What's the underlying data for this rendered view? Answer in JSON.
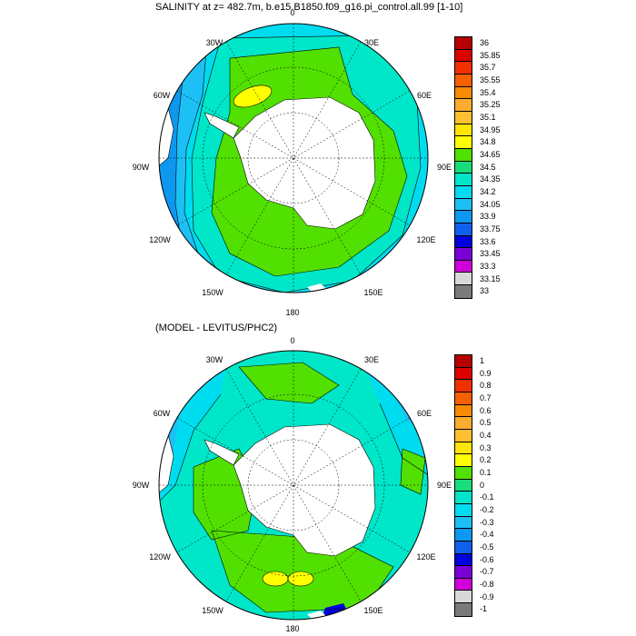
{
  "panels": [
    {
      "title": "SALINITY at z= 482.7m, b.e15.B1850.f09_g16.pi_control.all.99 [1-10]",
      "lon_labels": [
        "0",
        "30E",
        "60E",
        "90E",
        "120E",
        "150E",
        "180",
        "150W",
        "120W",
        "90W",
        "60W",
        "30W"
      ],
      "colorbar": {
        "labels": [
          "36",
          "35.85",
          "35.7",
          "35.55",
          "35.4",
          "35.25",
          "35.1",
          "34.95",
          "34.8",
          "34.65",
          "34.5",
          "34.35",
          "34.2",
          "34.05",
          "33.9",
          "33.75",
          "33.6",
          "33.45",
          "33.3",
          "33.15",
          "33"
        ],
        "colors": [
          "#b40000",
          "#dc0000",
          "#f03000",
          "#f56000",
          "#f88a00",
          "#fbac30",
          "#fdc030",
          "#ffe600",
          "#ffff00",
          "#52e000",
          "#19dd7a",
          "#00e6c8",
          "#00dcef",
          "#1cc0f5",
          "#0d98f0",
          "#1060ee",
          "#0000e0",
          "#7a00d8",
          "#d000d8",
          "#d8d8d8",
          "#7a7a7a"
        ]
      }
    },
    {
      "title": "(MODEL - LEVITUS/PHC2)",
      "lon_labels": [
        "0",
        "30E",
        "60E",
        "90E",
        "120E",
        "150E",
        "180",
        "150W",
        "120W",
        "90W",
        "60W",
        "30W"
      ],
      "colorbar": {
        "labels": [
          "1",
          "0.9",
          "0.8",
          "0.7",
          "0.6",
          "0.5",
          "0.4",
          "0.3",
          "0.2",
          "0.1",
          "0",
          "-0.1",
          "-0.2",
          "-0.3",
          "-0.4",
          "-0.5",
          "-0.6",
          "-0.7",
          "-0.8",
          "-0.9",
          "-1"
        ],
        "colors": [
          "#b40000",
          "#dc0000",
          "#f03000",
          "#f56000",
          "#f88a00",
          "#fbac30",
          "#fdc030",
          "#ffe600",
          "#ffff00",
          "#52e000",
          "#19dd7a",
          "#00e6c8",
          "#00dcef",
          "#1cc0f5",
          "#0d98f0",
          "#1060ee",
          "#0000e0",
          "#7a00d8",
          "#d000d8",
          "#d8d8d8",
          "#7a7a7a"
        ]
      }
    }
  ]
}
